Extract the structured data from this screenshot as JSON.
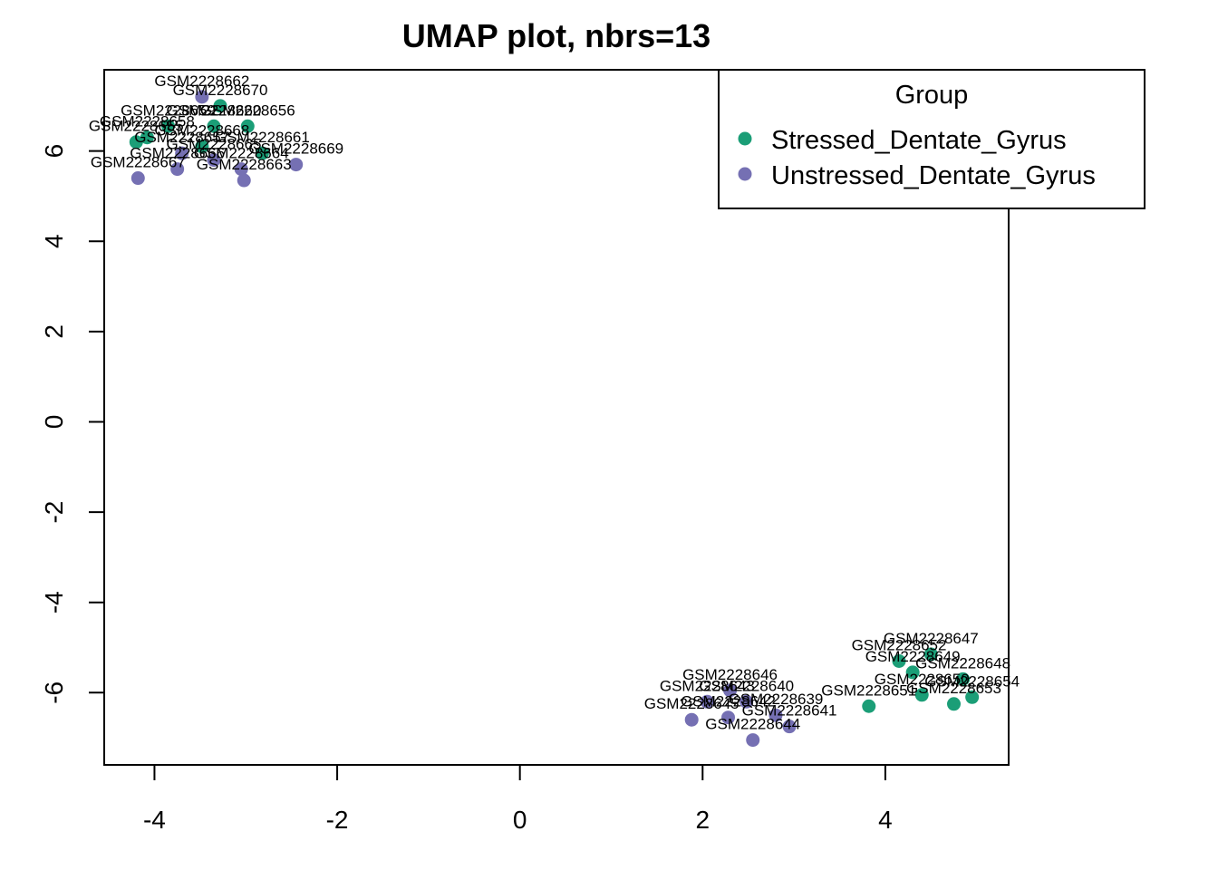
{
  "chart_data": {
    "type": "scatter",
    "title": "UMAP plot, nbrs=13",
    "xlabel": "",
    "ylabel": "",
    "xlim": [
      -4.55,
      5.35
    ],
    "ylim": [
      -7.6,
      7.8
    ],
    "xticks": [
      -4,
      -2,
      0,
      2,
      4
    ],
    "yticks": [
      -6,
      -4,
      -2,
      0,
      2,
      4,
      6
    ],
    "xtick_labels": [
      "-4",
      "-2",
      "0",
      "2",
      "4"
    ],
    "ytick_labels": [
      "-6",
      "-4",
      "-2",
      "0",
      "2",
      "4",
      "6"
    ],
    "grid": false,
    "legend": {
      "title": "Group",
      "placement": "top-right",
      "entries": [
        {
          "name": "Stressed_Dentate_Gyrus",
          "color": "#1B9E77"
        },
        {
          "name": "Unstressed_Dentate_Gyrus",
          "color": "#7570B3"
        }
      ]
    },
    "series": [
      {
        "name": "Stressed_Dentate_Gyrus",
        "color": "#1B9E77",
        "points": [
          {
            "x": -3.28,
            "y": 7.0,
            "label": "GSM2228670"
          },
          {
            "x": -3.85,
            "y": 6.55,
            "label": "GSM2228659"
          },
          {
            "x": -3.35,
            "y": 6.55,
            "label": "GSM2228660"
          },
          {
            "x": -2.98,
            "y": 6.55,
            "label": "GSM2228656"
          },
          {
            "x": -4.2,
            "y": 6.2,
            "label": "GSM2228655"
          },
          {
            "x": -4.08,
            "y": 6.3,
            "label": "GSM2228658"
          },
          {
            "x": -3.48,
            "y": 6.1,
            "label": "GSM2228668"
          },
          {
            "x": -2.82,
            "y": 5.95,
            "label": "GSM2228661"
          },
          {
            "x": 4.5,
            "y": -5.15,
            "label": "GSM2228647"
          },
          {
            "x": 4.15,
            "y": -5.3,
            "label": "GSM2228652"
          },
          {
            "x": 4.3,
            "y": -5.55,
            "label": "GSM2228649"
          },
          {
            "x": 4.85,
            "y": -5.7,
            "label": "GSM2228648"
          },
          {
            "x": 4.4,
            "y": -6.05,
            "label": "GSM2228650"
          },
          {
            "x": 4.95,
            "y": -6.1,
            "label": "GSM2228654"
          },
          {
            "x": 3.82,
            "y": -6.3,
            "label": "GSM2228651"
          },
          {
            "x": 4.75,
            "y": -6.25,
            "label": "GSM2228653"
          }
        ]
      },
      {
        "name": "Unstressed_Dentate_Gyrus",
        "color": "#7570B3",
        "points": [
          {
            "x": -3.48,
            "y": 7.2,
            "label": "GSM2228662"
          },
          {
            "x": -3.7,
            "y": 5.95,
            "label": "GSM2228657"
          },
          {
            "x": -3.35,
            "y": 5.8,
            "label": "GSM2228665"
          },
          {
            "x": -2.45,
            "y": 5.7,
            "label": "GSM2228669"
          },
          {
            "x": -3.75,
            "y": 5.6,
            "label": "GSM2228666"
          },
          {
            "x": -3.05,
            "y": 5.6,
            "label": "GSM2228664"
          },
          {
            "x": -4.18,
            "y": 5.4,
            "label": "GSM2228667"
          },
          {
            "x": -3.02,
            "y": 5.35,
            "label": "GSM2228663"
          },
          {
            "x": 2.3,
            "y": -5.95,
            "label": "GSM2228646"
          },
          {
            "x": 2.48,
            "y": -6.2,
            "label": "GSM2228640"
          },
          {
            "x": 2.05,
            "y": -6.2,
            "label": "GSM2228643"
          },
          {
            "x": 2.8,
            "y": -6.5,
            "label": "GSM2228639"
          },
          {
            "x": 1.88,
            "y": -6.6,
            "label": "GSM2228645"
          },
          {
            "x": 2.28,
            "y": -6.55,
            "label": "GSM2228642"
          },
          {
            "x": 2.95,
            "y": -6.75,
            "label": "GSM2228641"
          },
          {
            "x": 2.55,
            "y": -7.05,
            "label": "GSM2228644"
          }
        ]
      }
    ]
  }
}
